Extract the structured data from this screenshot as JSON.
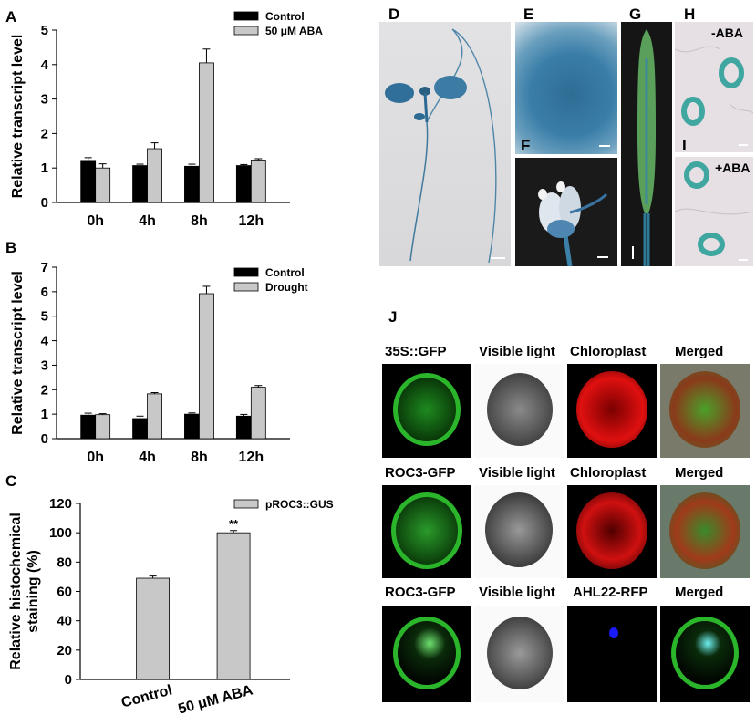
{
  "panels": {
    "A": "A",
    "B": "B",
    "C": "C",
    "D": "D",
    "E": "E",
    "F": "F",
    "G": "G",
    "H": "H",
    "I": "I",
    "J": "J"
  },
  "chart_data": [
    {
      "id": "A",
      "type": "bar",
      "categories": [
        "0h",
        "4h",
        "8h",
        "12h"
      ],
      "series": [
        {
          "name": "Control",
          "values": [
            1.22,
            1.07,
            1.05,
            1.07
          ],
          "errors": [
            0.08,
            0.04,
            0.06,
            0.03
          ],
          "color": "#000000"
        },
        {
          "name": "50 μM ABA",
          "values": [
            1.0,
            1.56,
            4.05,
            1.23
          ],
          "errors": [
            0.12,
            0.17,
            0.4,
            0.04
          ],
          "color": "#c8c8c8"
        }
      ],
      "ylabel": "Relative transcript level",
      "ylim": [
        0,
        5
      ],
      "yticks": [
        0,
        1,
        2,
        3,
        4,
        5
      ],
      "legend": "top-right"
    },
    {
      "id": "B",
      "type": "bar",
      "categories": [
        "0h",
        "4h",
        "8h",
        "12h"
      ],
      "series": [
        {
          "name": "Control",
          "values": [
            0.96,
            0.82,
            1.0,
            0.92
          ],
          "errors": [
            0.08,
            0.1,
            0.05,
            0.07
          ],
          "color": "#000000"
        },
        {
          "name": "Drought",
          "values": [
            0.98,
            1.83,
            5.92,
            2.1
          ],
          "errors": [
            0.04,
            0.05,
            0.3,
            0.07
          ],
          "color": "#c8c8c8"
        }
      ],
      "ylabel": "Relative transcript level",
      "ylim": [
        0,
        7
      ],
      "yticks": [
        0,
        1,
        2,
        3,
        4,
        5,
        6,
        7
      ],
      "legend": "top-right"
    },
    {
      "id": "C",
      "type": "bar",
      "categories": [
        "Control",
        "50 μM ABA"
      ],
      "series": [
        {
          "name": "pROC3::GUS",
          "values": [
            69,
            100
          ],
          "errors": [
            1.5,
            1.5
          ],
          "color": "#c8c8c8"
        }
      ],
      "annotations": [
        "",
        "**"
      ],
      "ylabel": "Relative histochemical staining (%)",
      "ylabel_lines": [
        "Relative histochemical",
        "staining (%)"
      ],
      "ylim": [
        0,
        120
      ],
      "yticks": [
        0,
        20,
        40,
        60,
        80,
        100,
        120
      ],
      "legend": "top-right"
    }
  ],
  "photos": {
    "H_label": "-ABA",
    "I_label": "+ABA"
  },
  "grid": {
    "column_headers": [
      [
        "35S::GFP",
        "Visible light",
        "Chloroplast",
        "Merged"
      ],
      [
        "ROC3-GFP",
        "Visible light",
        "Chloroplast",
        "Merged"
      ],
      [
        "ROC3-GFP",
        "Visible light",
        "AHL22-RFP",
        "Merged"
      ]
    ]
  }
}
